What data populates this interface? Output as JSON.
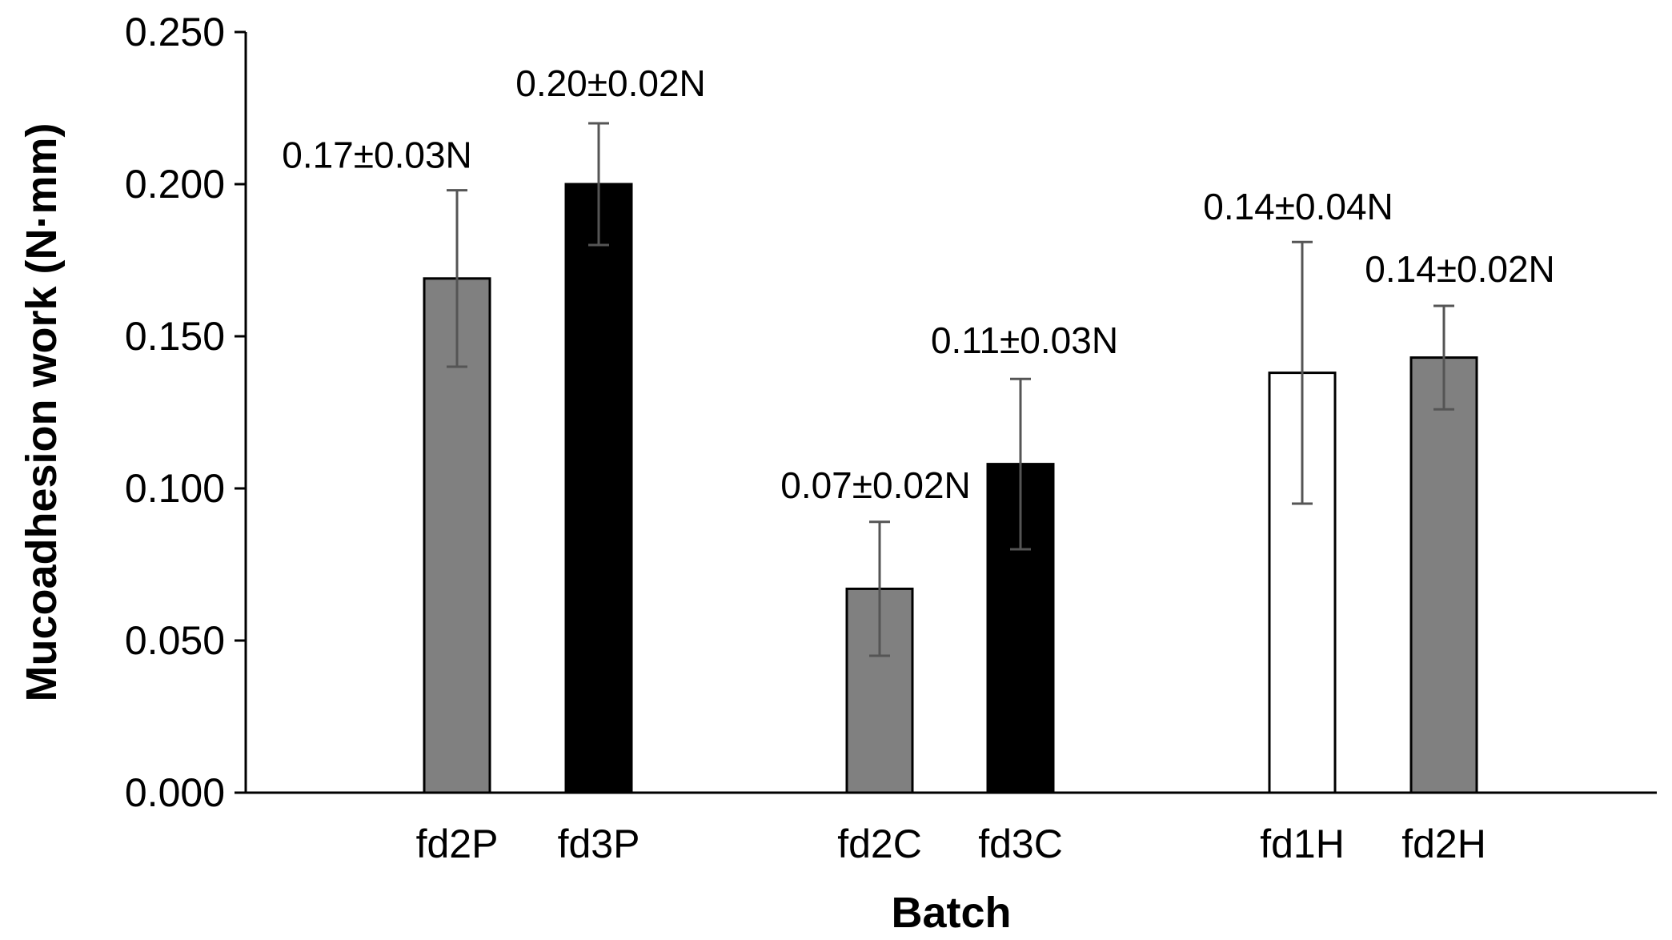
{
  "chart_data": {
    "type": "bar",
    "title": "",
    "xlabel": "Batch",
    "ylabel": "Mucoadhesion work (N·mm)",
    "ylim": [
      0,
      0.25
    ],
    "yticks": [
      "0.000",
      "0.050",
      "0.100",
      "0.150",
      "0.200",
      "0.250"
    ],
    "ytick_values": [
      0,
      0.05,
      0.1,
      0.15,
      0.2,
      0.25
    ],
    "grid": false,
    "legend": "none",
    "categories": [
      "fd2P",
      "fd3P",
      "fd2C",
      "fd3C",
      "fd1H",
      "fd2H"
    ],
    "groups": [
      [
        "fd2P",
        "fd3P"
      ],
      [
        "fd2C",
        "fd3C"
      ],
      [
        "fd1H",
        "fd2H"
      ]
    ],
    "bars": [
      {
        "category": "fd2P",
        "value": 0.169,
        "error": 0.029,
        "fill": "#808080",
        "label": "0.17±0.03N"
      },
      {
        "category": "fd3P",
        "value": 0.2,
        "error": 0.02,
        "fill": "#000000",
        "label": "0.20±0.02N"
      },
      {
        "category": "fd2C",
        "value": 0.067,
        "error": 0.022,
        "fill": "#808080",
        "label": "0.07±0.02N"
      },
      {
        "category": "fd3C",
        "value": 0.108,
        "error": 0.028,
        "fill": "#000000",
        "label": "0.11±0.03N"
      },
      {
        "category": "fd1H",
        "value": 0.138,
        "error": 0.043,
        "fill": "#ffffff",
        "label": "0.14±0.04N"
      },
      {
        "category": "fd2H",
        "value": 0.143,
        "error": 0.017,
        "fill": "#808080",
        "label": "0.14±0.02N"
      }
    ],
    "colors": {
      "axis": "#000000",
      "error_bar": "#555555",
      "bar_outline": "#000000"
    }
  }
}
